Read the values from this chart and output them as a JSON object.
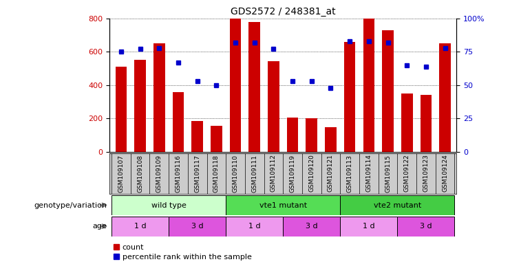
{
  "title": "GDS2572 / 248381_at",
  "samples": [
    "GSM109107",
    "GSM109108",
    "GSM109109",
    "GSM109116",
    "GSM109117",
    "GSM109118",
    "GSM109110",
    "GSM109111",
    "GSM109112",
    "GSM109119",
    "GSM109120",
    "GSM109121",
    "GSM109113",
    "GSM109114",
    "GSM109115",
    "GSM109122",
    "GSM109123",
    "GSM109124"
  ],
  "counts": [
    510,
    550,
    650,
    360,
    185,
    155,
    800,
    780,
    545,
    205,
    200,
    148,
    660,
    800,
    730,
    350,
    340,
    650
  ],
  "percentiles": [
    75,
    77,
    78,
    67,
    53,
    50,
    82,
    82,
    77,
    53,
    53,
    48,
    83,
    83,
    82,
    65,
    64,
    78
  ],
  "ylim_left": [
    0,
    800
  ],
  "ylim_right": [
    0,
    100
  ],
  "yticks_left": [
    0,
    200,
    400,
    600,
    800
  ],
  "yticks_right": [
    0,
    25,
    50,
    75,
    100
  ],
  "bar_color": "#cc0000",
  "dot_color": "#0000cc",
  "genotype_groups": [
    {
      "label": "wild type",
      "start": 0,
      "end": 6,
      "color": "#ccffcc"
    },
    {
      "label": "vte1 mutant",
      "start": 6,
      "end": 12,
      "color": "#55dd55"
    },
    {
      "label": "vte2 mutant",
      "start": 12,
      "end": 18,
      "color": "#44cc44"
    }
  ],
  "age_groups": [
    {
      "label": "1 d",
      "start": 0,
      "end": 3,
      "color": "#ee99ee"
    },
    {
      "label": "3 d",
      "start": 3,
      "end": 6,
      "color": "#dd55dd"
    },
    {
      "label": "1 d",
      "start": 6,
      "end": 9,
      "color": "#ee99ee"
    },
    {
      "label": "3 d",
      "start": 9,
      "end": 12,
      "color": "#dd55dd"
    },
    {
      "label": "1 d",
      "start": 12,
      "end": 15,
      "color": "#ee99ee"
    },
    {
      "label": "3 d",
      "start": 15,
      "end": 18,
      "color": "#dd55dd"
    }
  ],
  "legend_count_label": "count",
  "legend_pct_label": "percentile rank within the sample",
  "genotype_row_label": "genotype/variation",
  "age_row_label": "age",
  "bg_color": "#ffffff",
  "xticklabel_area_color": "#cccccc",
  "right_ytick_labels": [
    "0",
    "25",
    "50",
    "75",
    "100%"
  ]
}
